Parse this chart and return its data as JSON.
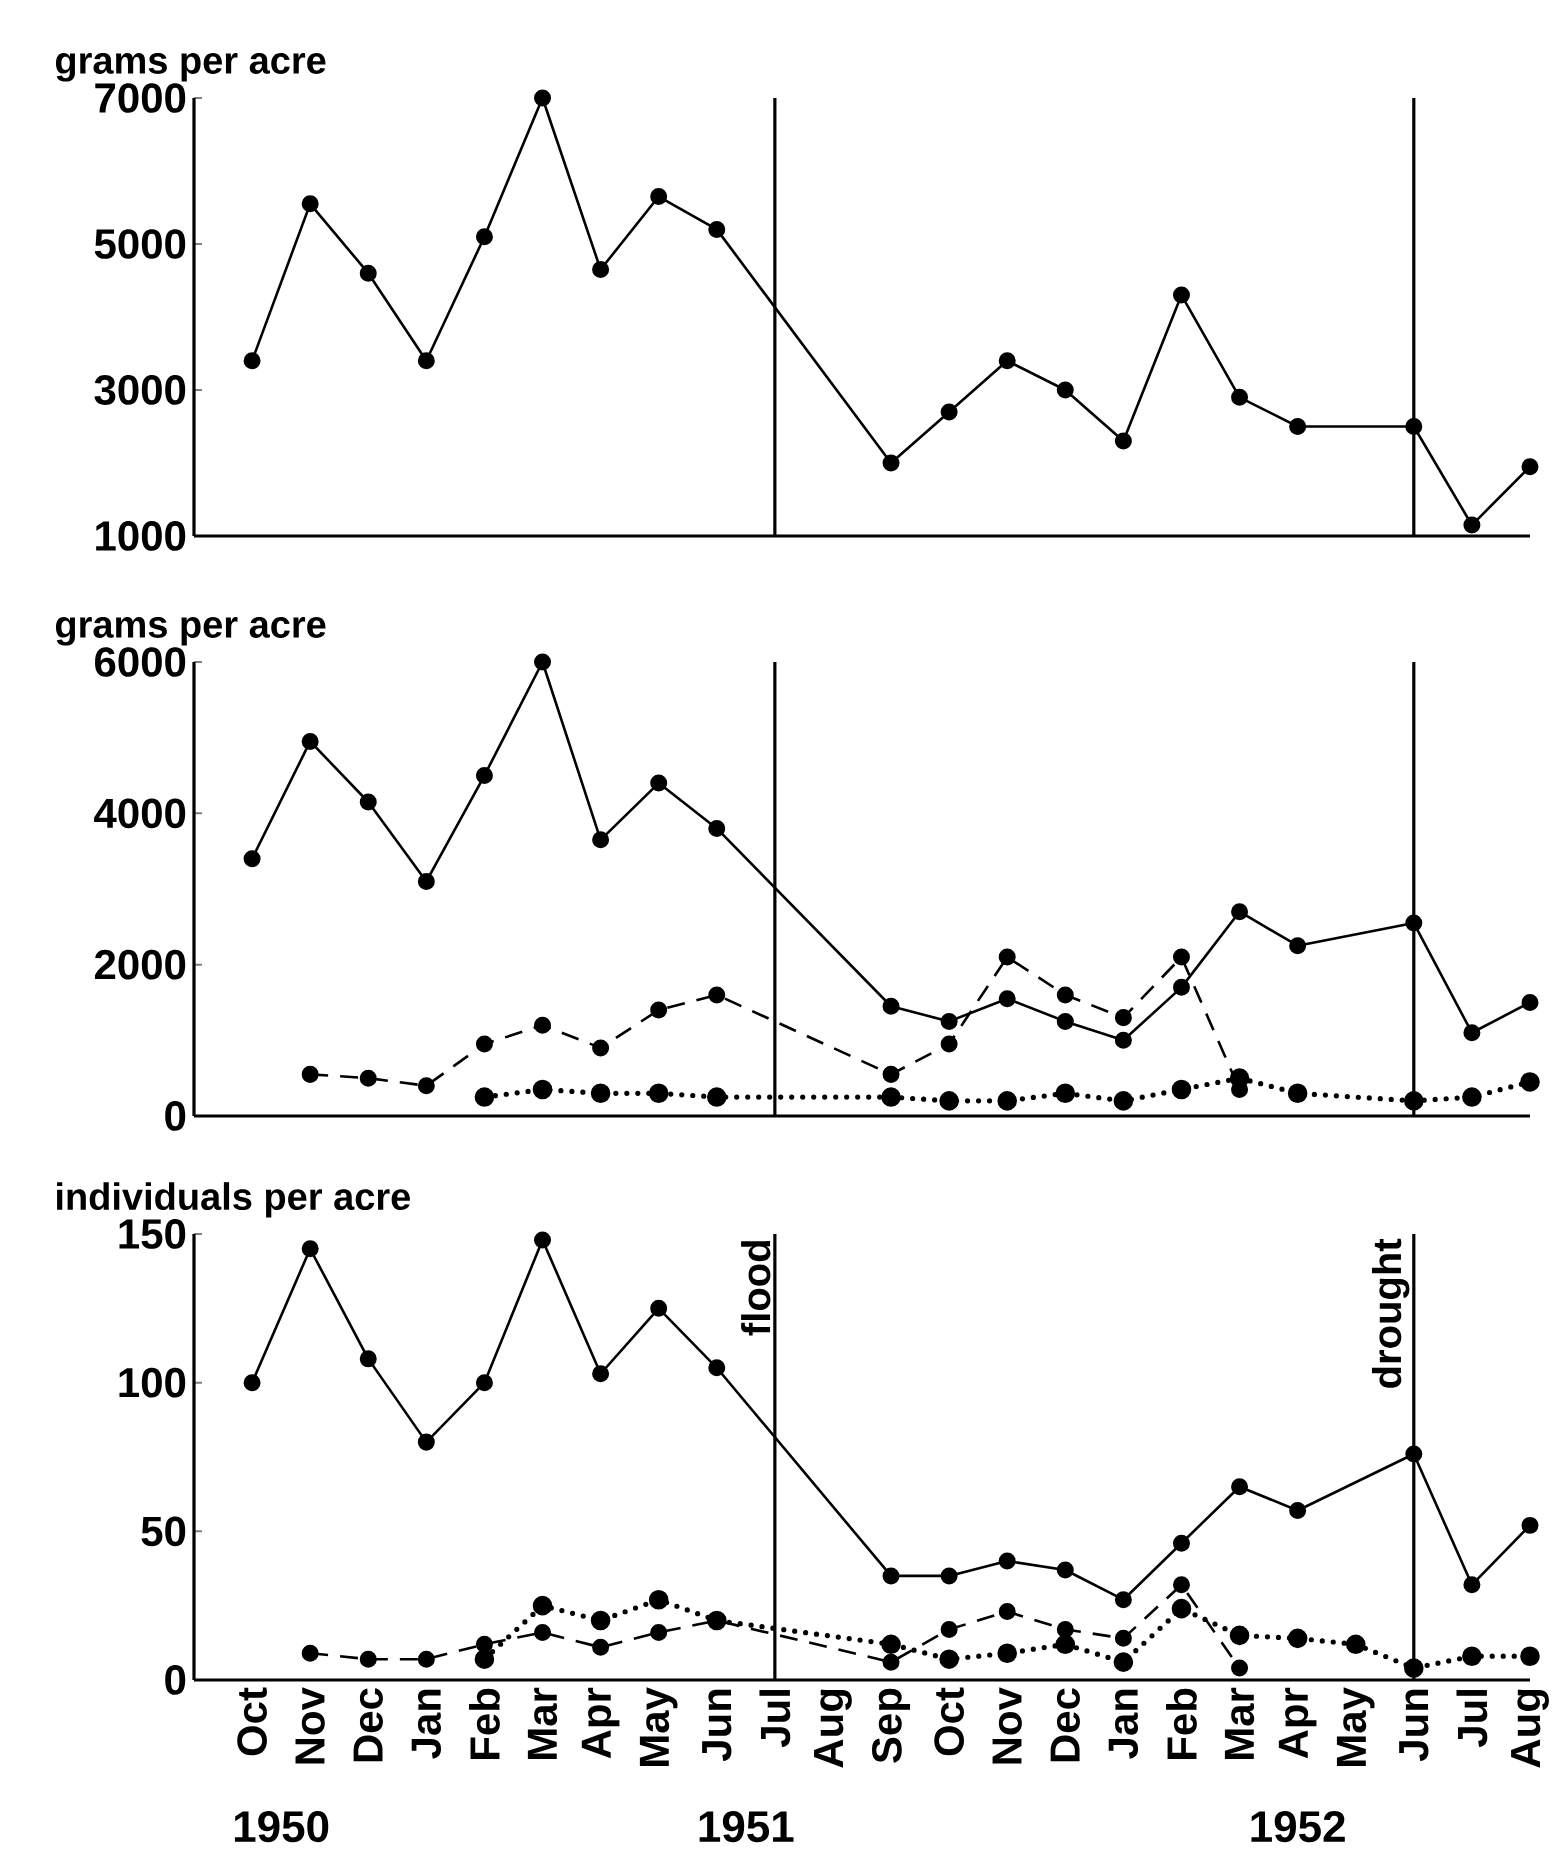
{
  "chart_data": [
    {
      "type": "line",
      "ylabel": "grams per acre",
      "marker": "circle",
      "tick_labels": "y",
      "x": [
        "1950-10",
        "1950-11",
        "1950-12",
        "1951-01",
        "1951-02",
        "1951-03",
        "1951-04",
        "1951-05",
        "1951-06",
        "1951-07",
        "1951-08",
        "1951-09",
        "1951-10",
        "1951-11",
        "1951-12",
        "1952-01",
        "1952-02",
        "1952-03",
        "1952-04",
        "1952-05",
        "1952-06",
        "1952-07",
        "1952-08"
      ],
      "series": [
        {
          "color": "#000000",
          "line_style": "solid",
          "values": [
            3400,
            5550,
            4600,
            3400,
            5100,
            7000,
            4650,
            5650,
            5200,
            null,
            null,
            2000,
            2700,
            3400,
            3000,
            2300,
            4300,
            2900,
            2500,
            null,
            2500,
            1150,
            1950
          ]
        }
      ],
      "xlim": [
        "1950-09",
        "1952-08"
      ],
      "ylim": [
        1000,
        7000
      ],
      "yticks": [
        1000,
        3000,
        5000,
        7000
      ],
      "ref_lines": [
        {
          "axis": "x",
          "value": "1951-07"
        },
        {
          "axis": "x",
          "value": "1952-06"
        }
      ]
    },
    {
      "type": "line",
      "ylabel": "grams per acre",
      "marker": "circle",
      "tick_labels": "y",
      "x": [
        "1950-10",
        "1950-11",
        "1950-12",
        "1951-01",
        "1951-02",
        "1951-03",
        "1951-04",
        "1951-05",
        "1951-06",
        "1951-07",
        "1951-08",
        "1951-09",
        "1951-10",
        "1951-11",
        "1951-12",
        "1952-01",
        "1952-02",
        "1952-03",
        "1952-04",
        "1952-05",
        "1952-06",
        "1952-07",
        "1952-08"
      ],
      "series": [
        {
          "color": "#000000",
          "line_style": "solid",
          "values": [
            3400,
            4950,
            4150,
            3100,
            4500,
            6000,
            3650,
            4400,
            3800,
            null,
            null,
            1450,
            1250,
            1550,
            1250,
            1000,
            1700,
            2700,
            2250,
            null,
            2550,
            1100,
            1500
          ]
        },
        {
          "color": "#000000",
          "line_style": "dashed",
          "values": [
            null,
            550,
            500,
            400,
            950,
            1200,
            900,
            1400,
            1600,
            null,
            null,
            550,
            950,
            2100,
            1600,
            1300,
            2100,
            350,
            null,
            null,
            null,
            null,
            null
          ]
        },
        {
          "color": "#000000",
          "line_style": "dotted",
          "values": [
            null,
            null,
            null,
            null,
            250,
            350,
            300,
            300,
            250,
            null,
            null,
            250,
            200,
            200,
            300,
            200,
            350,
            500,
            300,
            null,
            200,
            250,
            450
          ]
        }
      ],
      "xlim": [
        "1950-09",
        "1952-08"
      ],
      "ylim": [
        0,
        6000
      ],
      "yticks": [
        0,
        2000,
        4000,
        6000
      ],
      "ref_lines": [
        {
          "axis": "x",
          "value": "1951-07"
        },
        {
          "axis": "x",
          "value": "1952-06"
        }
      ]
    },
    {
      "type": "line",
      "ylabel": "individuals per acre",
      "marker": "circle",
      "x": [
        "1950-10",
        "1950-11",
        "1950-12",
        "1951-01",
        "1951-02",
        "1951-03",
        "1951-04",
        "1951-05",
        "1951-06",
        "1951-07",
        "1951-08",
        "1951-09",
        "1951-10",
        "1951-11",
        "1951-12",
        "1952-01",
        "1952-02",
        "1952-03",
        "1952-04",
        "1952-05",
        "1952-06",
        "1952-07",
        "1952-08"
      ],
      "series": [
        {
          "color": "#000000",
          "line_style": "solid",
          "values": [
            100,
            145,
            108,
            80,
            100,
            148,
            103,
            125,
            105,
            null,
            null,
            35,
            35,
            40,
            37,
            27,
            46,
            65,
            57,
            null,
            76,
            32,
            52
          ]
        },
        {
          "color": "#000000",
          "line_style": "dashed",
          "values": [
            null,
            9,
            7,
            7,
            12,
            16,
            11,
            16,
            20,
            null,
            null,
            6,
            17,
            23,
            17,
            14,
            32,
            4,
            null,
            null,
            null,
            null,
            null
          ]
        },
        {
          "color": "#000000",
          "line_style": "dotted",
          "values": [
            null,
            null,
            null,
            null,
            7,
            25,
            20,
            27,
            20,
            null,
            null,
            12,
            7,
            9,
            12,
            6,
            24,
            15,
            14,
            12,
            4,
            8,
            8
          ]
        }
      ],
      "xlim": [
        "1950-09",
        "1952-08"
      ],
      "ylim": [
        0,
        150
      ],
      "yticks": [
        0,
        50,
        100,
        150
      ],
      "xticks": [
        {
          "value": "1950-10",
          "label": "Oct"
        },
        {
          "value": "1950-11",
          "label": "Nov"
        },
        {
          "value": "1950-12",
          "label": "Dec"
        },
        {
          "value": "1951-01",
          "label": "Jan"
        },
        {
          "value": "1951-02",
          "label": "Feb"
        },
        {
          "value": "1951-03",
          "label": "Mar"
        },
        {
          "value": "1951-04",
          "label": "Apr"
        },
        {
          "value": "1951-05",
          "label": "May"
        },
        {
          "value": "1951-06",
          "label": "Jun"
        },
        {
          "value": "1951-07",
          "label": "Jul"
        },
        {
          "value": "1951-08",
          "label": "Aug"
        },
        {
          "value": "1951-09",
          "label": "Sep"
        },
        {
          "value": "1951-10",
          "label": "Oct"
        },
        {
          "value": "1951-11",
          "label": "Nov"
        },
        {
          "value": "1951-12",
          "label": "Dec"
        },
        {
          "value": "1952-01",
          "label": "Jan"
        },
        {
          "value": "1952-02",
          "label": "Feb"
        },
        {
          "value": "1952-03",
          "label": "Mar"
        },
        {
          "value": "1952-04",
          "label": "Apr"
        },
        {
          "value": "1952-05",
          "label": "May"
        },
        {
          "value": "1952-06",
          "label": "Jun"
        },
        {
          "value": "1952-07",
          "label": "Jul"
        },
        {
          "value": "1952-08",
          "label": "Aug"
        }
      ],
      "ref_lines": [
        {
          "axis": "x",
          "value": "1951-07",
          "label": "flood"
        },
        {
          "axis": "x",
          "value": "1952-06",
          "label": "drought"
        }
      ],
      "annotations": [
        "1950",
        "1951",
        "1952"
      ]
    }
  ]
}
